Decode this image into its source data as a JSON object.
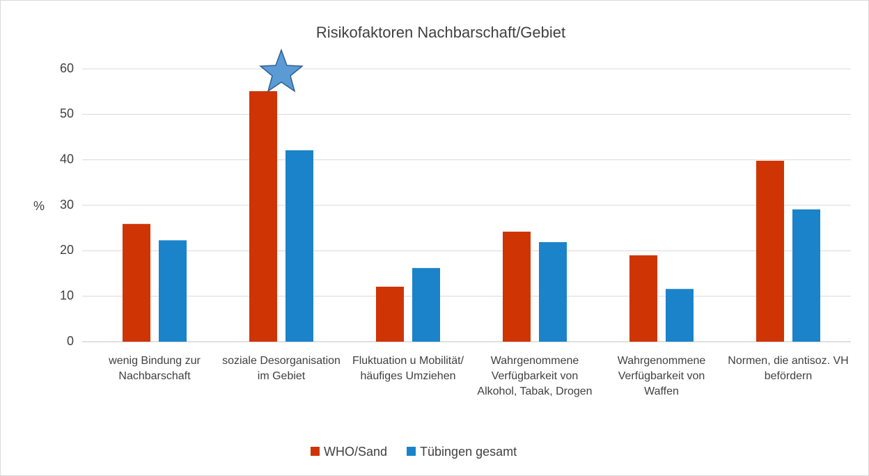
{
  "chart_data": {
    "type": "bar",
    "title": "Risikofaktoren Nachbarschaft/Gebiet",
    "y_label": "%",
    "categories": [
      "wenig Bindung zur Nachbarschaft",
      "soziale Desorganisation im Gebiet",
      "Fluktuation u Mobilität/ häufiges Umziehen",
      "Wahrgenommene Verfügbarkeit von Alkohol, Tabak, Drogen",
      "Wahrgenommene Verfügbarkeit von Waffen",
      "Normen, die antisoz. VH befördern"
    ],
    "series": [
      {
        "name": "WHO/Sand",
        "color": "#cf3405",
        "values": [
          25.9,
          55.1,
          12.1,
          24.2,
          19.0,
          39.8
        ]
      },
      {
        "name": "Tübingen gesamt",
        "color": "#1b83c9",
        "values": [
          22.3,
          42.1,
          16.2,
          21.9,
          11.6,
          29.1
        ]
      }
    ],
    "ylim": [
      0,
      60
    ],
    "yticks": [
      0,
      10,
      20,
      30,
      40,
      50,
      60
    ],
    "grid": true,
    "legend": "bottom"
  }
}
